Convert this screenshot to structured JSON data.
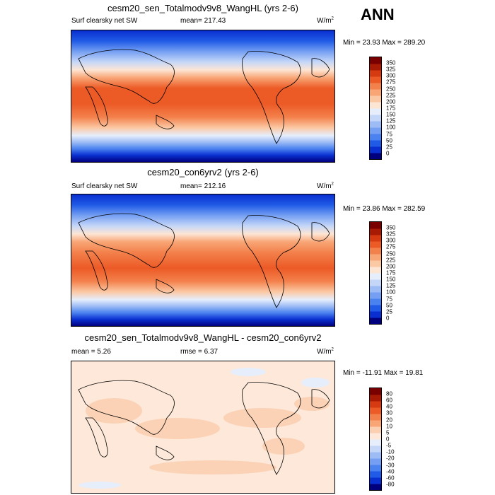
{
  "header": {
    "season": "ANN"
  },
  "panels": [
    {
      "title": "cesm20_sen_Totalmodv9v8_WangHL (yrs 2-6)",
      "field": "Surf clearsky net SW",
      "stat_label": "mean=",
      "stat_value": "217.43",
      "units": "W/m",
      "units_exp": "2",
      "minmax": "Min =  23.93 Max = 289.20",
      "colorbar": [
        "0",
        "25",
        "50",
        "75",
        "100",
        "125",
        "150",
        "175",
        "200",
        "225",
        "250",
        "275",
        "300",
        "325",
        "350"
      ]
    },
    {
      "title": "cesm20_con6yrv2 (yrs 2-6)",
      "field": "Surf clearsky net SW",
      "stat_label": "mean=",
      "stat_value": "212.16",
      "units": "W/m",
      "units_exp": "2",
      "minmax": "Min =  23.86 Max = 282.59",
      "colorbar": [
        "0",
        "25",
        "50",
        "75",
        "100",
        "125",
        "150",
        "175",
        "200",
        "225",
        "250",
        "275",
        "300",
        "325",
        "350"
      ]
    },
    {
      "title": "cesm20_sen_Totalmodv9v8_WangHL - cesm20_con6yrv2",
      "mean_label": "mean =",
      "mean_value": "5.26",
      "rmse_label": "rmse =",
      "rmse_value": "6.37",
      "units": "W/m",
      "units_exp": "2",
      "minmax": "Min = -11.91 Max =  19.81",
      "colorbar": [
        "-80",
        "-60",
        "-40",
        "-30",
        "-20",
        "-10",
        "-5",
        "0",
        "5",
        "10",
        "20",
        "30",
        "40",
        "60",
        "80"
      ]
    }
  ],
  "colors": {
    "abs_scale": [
      "#00007f",
      "#0a2fd0",
      "#1f5be6",
      "#4a82ef",
      "#759ff2",
      "#9dbcf5",
      "#c5d7f8",
      "#e6eefc",
      "#fde5d4",
      "#fbc8a4",
      "#f8a676",
      "#f3814c",
      "#ec5a26",
      "#d63a10",
      "#a81a04",
      "#7a0000"
    ],
    "diff_scale": [
      "#00007f",
      "#0a2fd0",
      "#1f5be6",
      "#4a82ef",
      "#759ff2",
      "#9dbcf5",
      "#c5d7f8",
      "#e6eefc",
      "#fde8d9",
      "#fbd0b2",
      "#f8a676",
      "#f3814c",
      "#ec5a26",
      "#d63a10",
      "#a81a04",
      "#7a0000"
    ]
  }
}
